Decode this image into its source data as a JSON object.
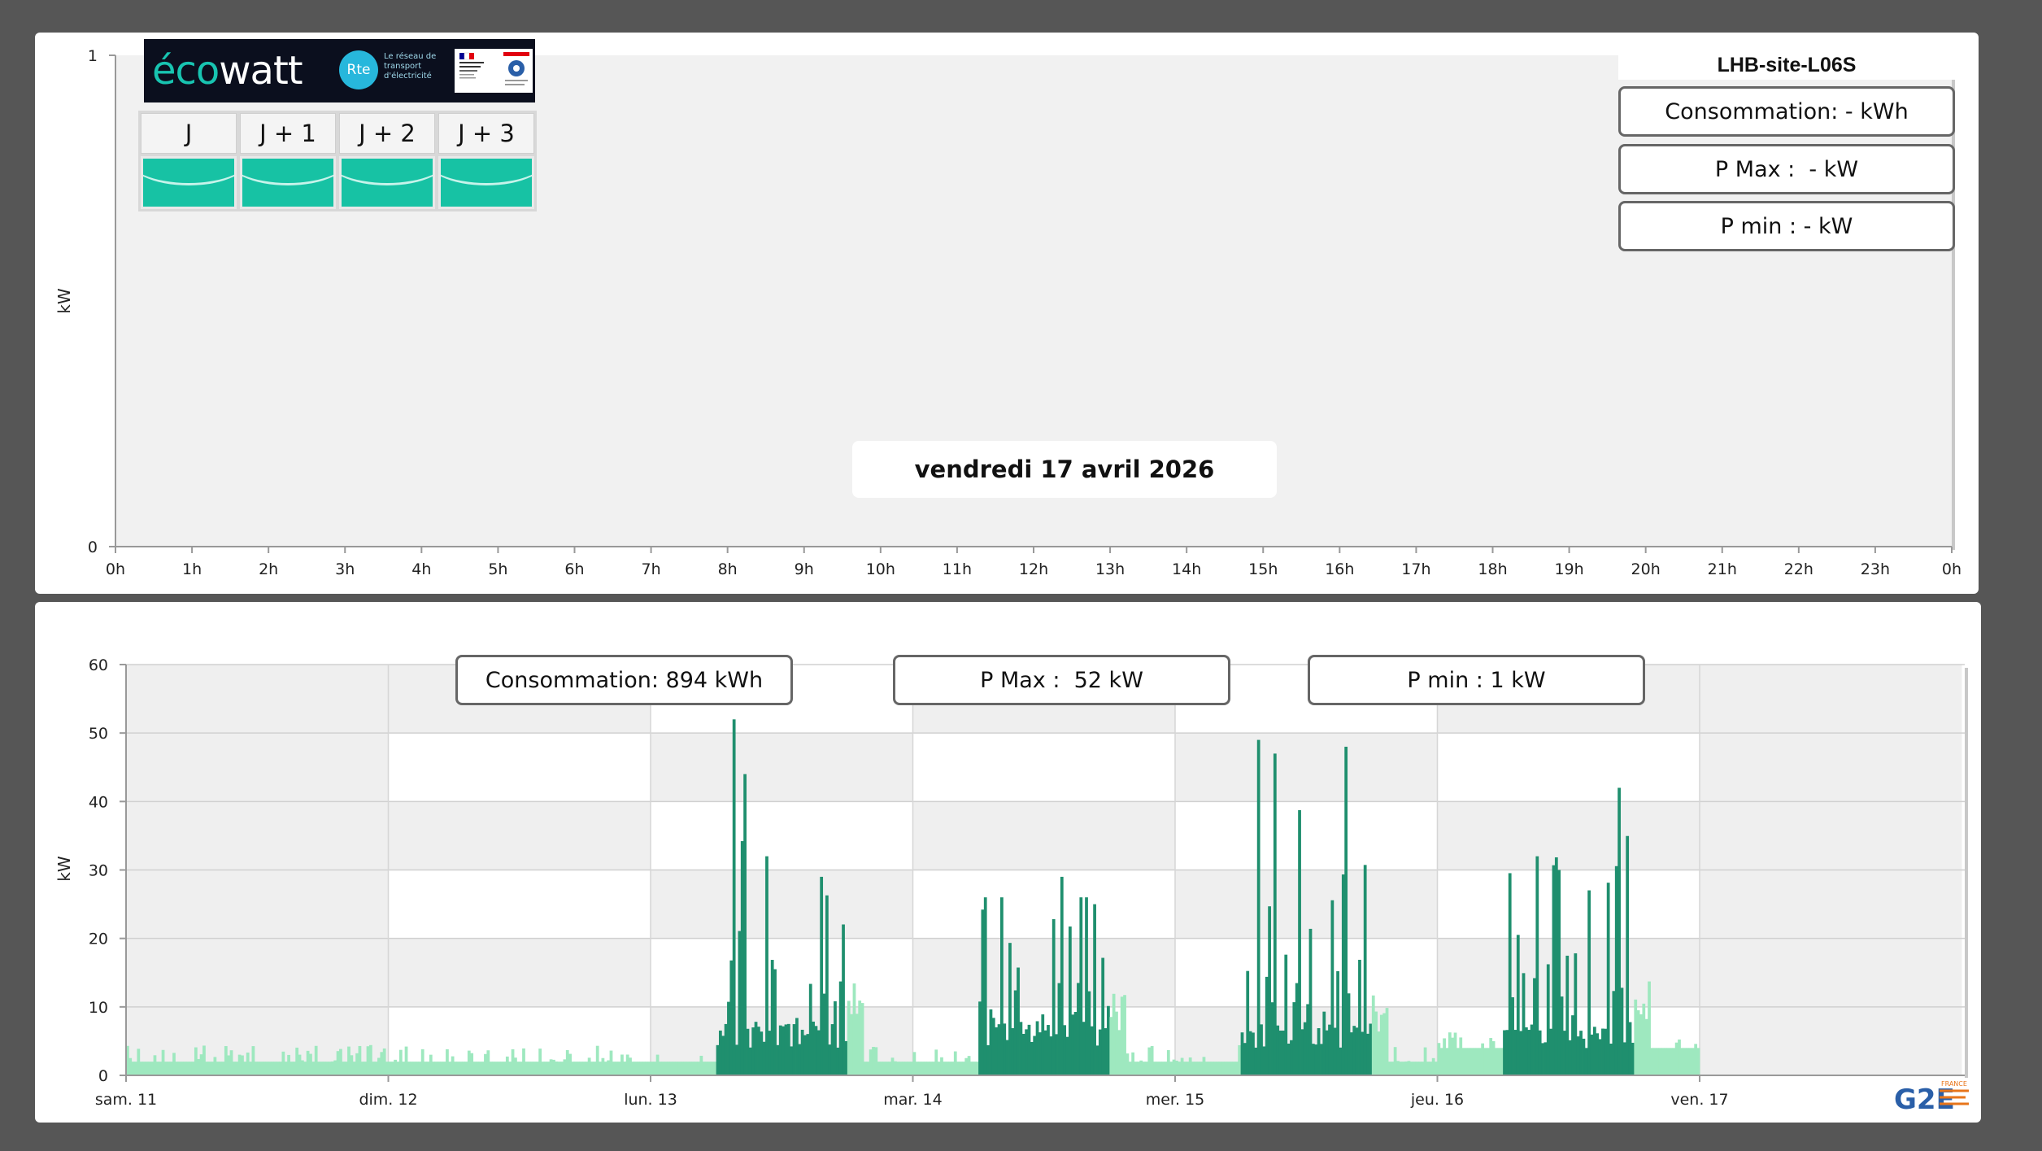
{
  "ecowatt": {
    "brand_eco": "éco",
    "brand_watt": "watt",
    "rte_mark": "Rte",
    "rte_tagline": "Le réseau de transport d'électricité",
    "days": [
      "J",
      "J + 1",
      "J + 2",
      "J + 3"
    ],
    "status_color": "#17c2a4"
  },
  "top": {
    "site_name": "LHB-site-L06S",
    "consumption": "Consommation: - kWh",
    "pmax": "P Max :  - kW",
    "pmin": "P min : - kW",
    "date": "vendredi 17 avril 2026"
  },
  "bottom": {
    "consumption": "Consommation: 894 kWh",
    "pmax": "P Max :  52 kW",
    "pmin": "P min : 1 kW",
    "logo_text": "G2E",
    "logo_sub": "FRANCE"
  },
  "chart_data": [
    {
      "type": "area",
      "ylabel": "kW",
      "ylim": [
        0,
        1
      ],
      "yticks": [
        "0",
        "1"
      ],
      "categories": [
        "0h",
        "1h",
        "2h",
        "3h",
        "4h",
        "5h",
        "6h",
        "7h",
        "8h",
        "9h",
        "10h",
        "11h",
        "12h",
        "13h",
        "14h",
        "15h",
        "16h",
        "17h",
        "18h",
        "19h",
        "20h",
        "21h",
        "22h",
        "23h",
        "0h"
      ],
      "series": [],
      "grid": false,
      "background": "#f1f1f1"
    },
    {
      "type": "bar",
      "ylabel": "kW",
      "ylim": [
        0,
        60
      ],
      "yticks": [
        "0",
        "10",
        "20",
        "30",
        "40",
        "50",
        "60"
      ],
      "xticks": [
        "sam. 11",
        "dim. 12",
        "lun. 13",
        "mar. 14",
        "mer. 15",
        "jeu. 16",
        "ven. 17"
      ],
      "grid": true,
      "colors": {
        "base": "#9ee8bf",
        "peak": "#1f8f6e",
        "grid_band": "#efefef"
      },
      "daily_profile": [
        {
          "day": "sam. 11",
          "base_kw": 2,
          "peak_kw": 4,
          "active_window": null
        },
        {
          "day": "dim. 12",
          "base_kw": 2,
          "peak_kw": 5,
          "active_window": null
        },
        {
          "day": "lun. 13",
          "base_kw": 2,
          "peak_kw": 52,
          "active_window": [
            6,
            18
          ]
        },
        {
          "day": "mar. 14",
          "base_kw": 2,
          "peak_kw": 29,
          "active_window": [
            6,
            18
          ]
        },
        {
          "day": "mer. 15",
          "base_kw": 2,
          "peak_kw": 49,
          "active_window": [
            6,
            18
          ]
        },
        {
          "day": "jeu. 16",
          "base_kw": 4,
          "peak_kw": 42,
          "active_window": [
            6,
            18
          ]
        }
      ],
      "peaks": [
        {
          "x": "lun. 13 07:30",
          "y": 52
        },
        {
          "x": "lun. 13 08:30",
          "y": 44
        },
        {
          "x": "lun. 13 10:30",
          "y": 32
        },
        {
          "x": "lun. 13 15:30",
          "y": 29
        },
        {
          "x": "mar. 14 08:00",
          "y": 26
        },
        {
          "x": "mar. 14 13:30",
          "y": 29
        },
        {
          "x": "mar. 14 16:30",
          "y": 25
        },
        {
          "x": "mer. 15 07:30",
          "y": 49
        },
        {
          "x": "mer. 15 09:00",
          "y": 47
        },
        {
          "x": "mer. 15 15:30",
          "y": 48
        },
        {
          "x": "jeu. 16 09:00",
          "y": 32
        },
        {
          "x": "jeu. 16 11:00",
          "y": 30
        },
        {
          "x": "jeu. 16 16:30",
          "y": 42
        }
      ]
    }
  ]
}
